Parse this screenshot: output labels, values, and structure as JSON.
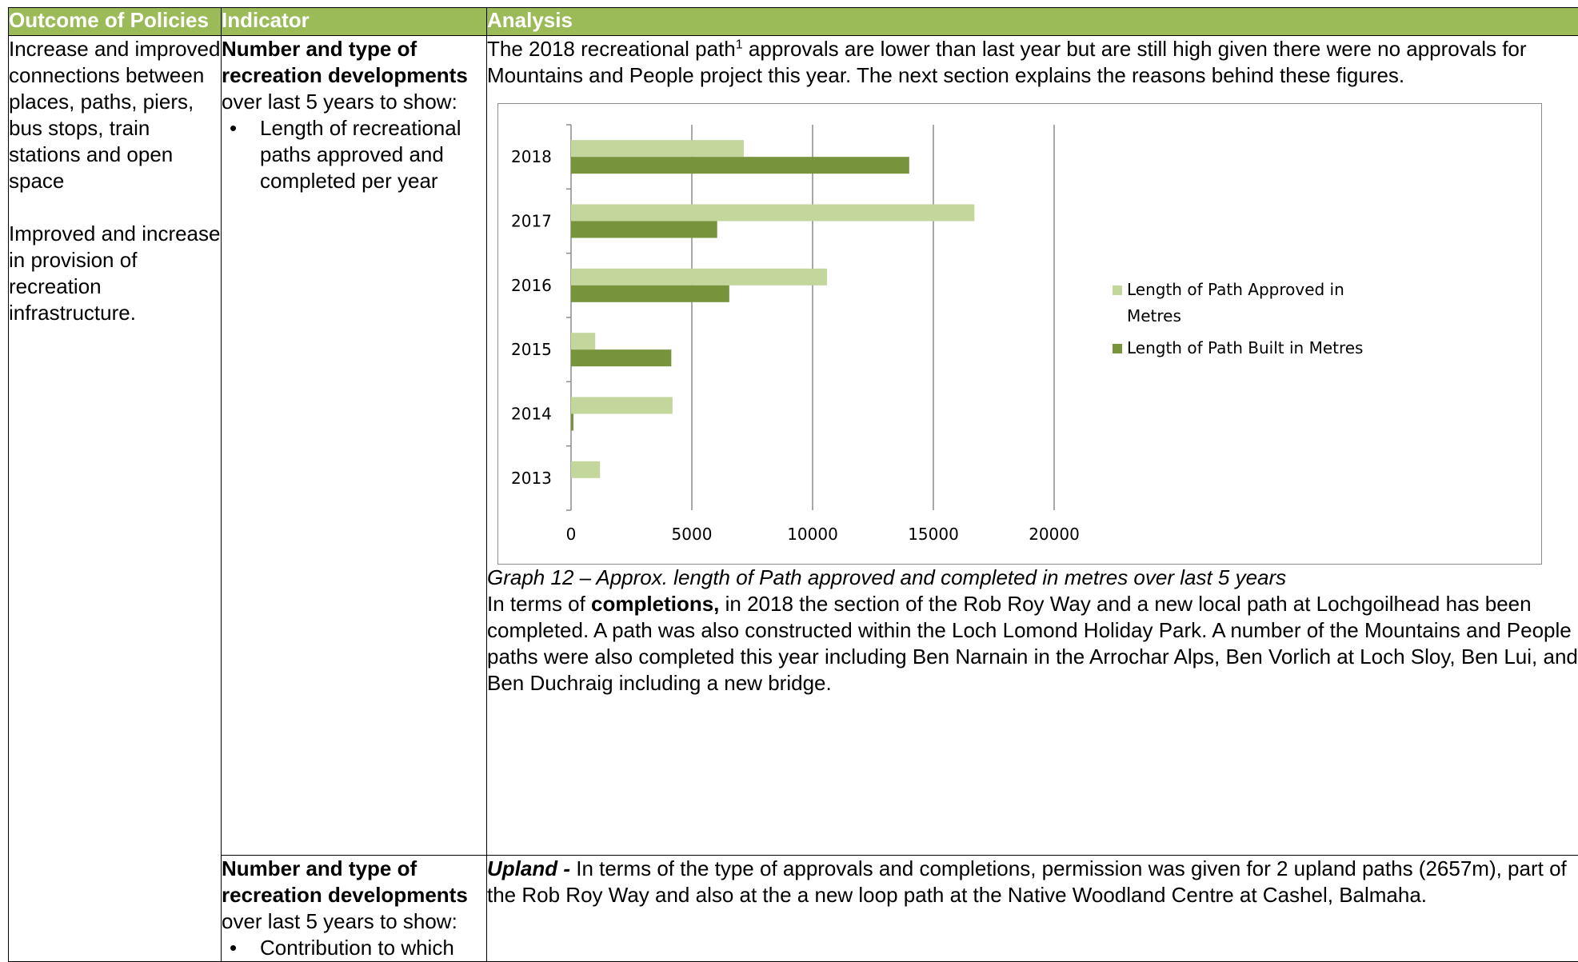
{
  "table": {
    "headers": [
      "Outcome of Policies",
      "Indicator",
      "Analysis"
    ],
    "outcome": {
      "p1": "Increase and improved connections between places, paths, piers, bus stops, train stations and open space",
      "p2": "Improved and increase in provision of recreation infrastructure."
    },
    "row1": {
      "indicator_bold": "Number and type of recreation developments",
      "indicator_text": "over last 5 years to show:",
      "indicator_bullet": "Length of recreational paths approved and completed per year",
      "analysis_intro_a": "The 2018 recreational path",
      "analysis_intro_sup": "1",
      "analysis_intro_b": " approvals are lower than last year but are still high given there were no approvals for Mountains and People project this year. The next section explains the reasons behind these figures.",
      "caption": "Graph 12 – Approx. length of Path approved and completed in metres over last 5 years",
      "completions_a": "In terms of ",
      "completions_bold": "completions,",
      "completions_b": " in 2018 the section of the Rob Roy Way and a new local path at Lochgoilhead has been completed. A path was also constructed within the Loch Lomond Holiday Park. A number of the Mountains and People paths were also completed this year including Ben Narnain in the Arrochar Alps, Ben Vorlich at Loch Sloy, Ben Lui, and Ben Duchraig including a new bridge."
    },
    "row2": {
      "indicator_bold": "Number and type of recreation developments",
      "indicator_text": "over last 5 years to show:",
      "indicator_bullet": "Contribution to which",
      "analysis_bold": "Upland - ",
      "analysis_text": " In terms of the type of approvals and completions, permission was given for 2 upland paths (2657m), part of the Rob Roy Way and also at the a new loop path at the Native Woodland Centre at Cashel, Balmaha."
    }
  },
  "chart_data": {
    "type": "bar",
    "orientation": "horizontal",
    "categories": [
      "2018",
      "2017",
      "2016",
      "2015",
      "2014",
      "2013"
    ],
    "series": [
      {
        "name": "Length of Path Approved in Metres",
        "color": "#c3d69b",
        "values": [
          7150,
          16700,
          10600,
          1000,
          4200,
          1200
        ]
      },
      {
        "name": "Length of Path Built in Metres",
        "color": "#77933c",
        "values": [
          14000,
          6050,
          6550,
          4150,
          100,
          0
        ]
      }
    ],
    "xlim": [
      0,
      20000
    ],
    "x_ticks": [
      "0",
      "5000",
      "10000",
      "15000",
      "20000"
    ],
    "grid": true,
    "legend_position": "right"
  }
}
